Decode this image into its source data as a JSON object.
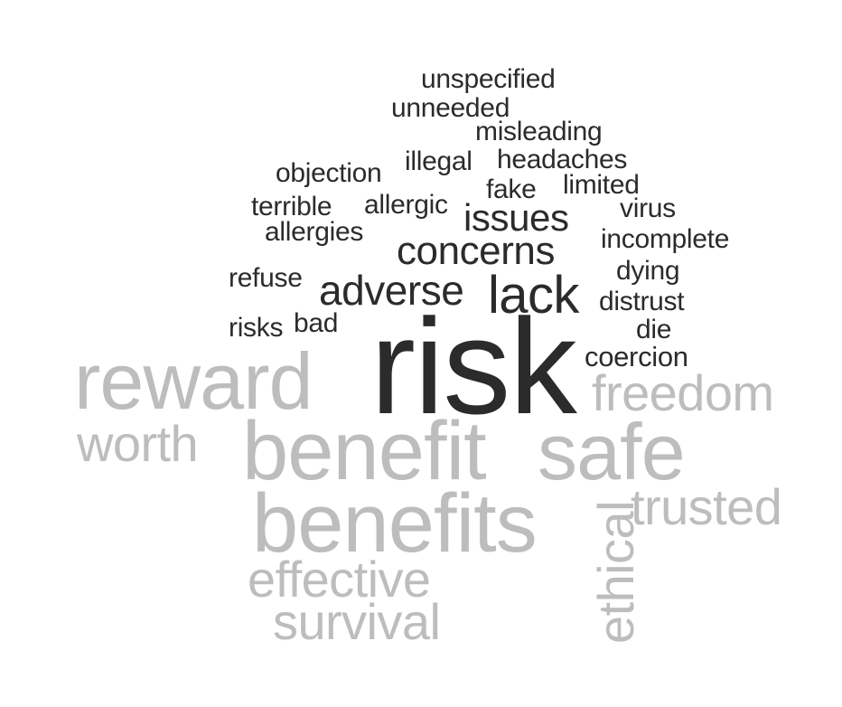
{
  "cloud_title": "",
  "colors": {
    "negative_words": "#2b2b2b",
    "positive_words": "#bdbdbd",
    "background": "#ffffff"
  },
  "words": {
    "unspecified": "unspecified",
    "unneeded": "unneeded",
    "misleading": "misleading",
    "objection": "objection",
    "illegal": "illegal",
    "headaches": "headaches",
    "fake": "fake",
    "limited": "limited",
    "terrible": "terrible",
    "allergic": "allergic",
    "issues": "issues",
    "virus": "virus",
    "allergies": "allergies",
    "incomplete": "incomplete",
    "concerns": "concerns",
    "refuse": "refuse",
    "adverse": "adverse",
    "lack": "lack",
    "dying": "dying",
    "distrust": "distrust",
    "risks": "risks",
    "bad": "bad",
    "die": "die",
    "risk": "risk",
    "coercion": "coercion",
    "reward": "reward",
    "freedom": "freedom",
    "worth": "worth",
    "benefit": "benefit",
    "safe": "safe",
    "benefits": "benefits",
    "ethical": "ethical",
    "trusted": "trusted",
    "effective": "effective",
    "survival": "survival"
  }
}
